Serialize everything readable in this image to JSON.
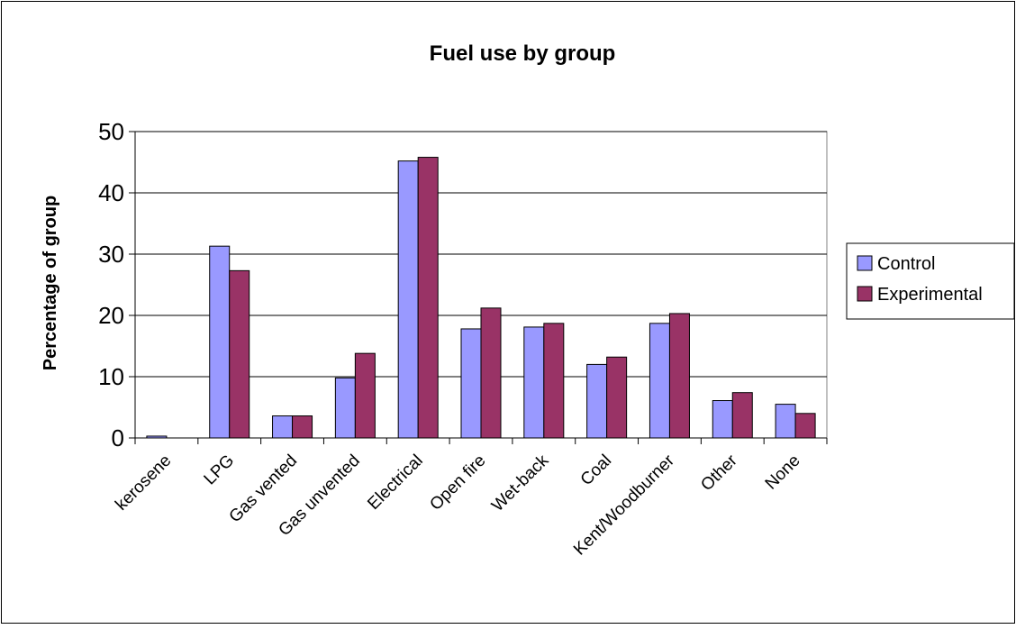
{
  "chart_data": {
    "type": "bar",
    "title": "Fuel use by group",
    "xlabel": "",
    "ylabel": "Percentage of group",
    "ylim": [
      0,
      50
    ],
    "yticks": [
      0,
      10,
      20,
      30,
      40,
      50
    ],
    "grid": true,
    "legend_position": "right",
    "categories": [
      "kerosene",
      "LPG",
      "Gas vented",
      "Gas unvented",
      "Electrical",
      "Open fire",
      "Wet-back",
      "Coal",
      "Kent/Woodburner",
      "Other",
      "None"
    ],
    "series": [
      {
        "name": "Control",
        "color": "#9999ff",
        "values": [
          0.3,
          31.3,
          3.6,
          9.8,
          45.2,
          17.8,
          18.1,
          12.0,
          18.7,
          6.1,
          5.5
        ]
      },
      {
        "name": "Experimental",
        "color": "#993366",
        "values": [
          0.0,
          27.3,
          3.6,
          13.8,
          45.8,
          21.2,
          18.7,
          13.2,
          20.3,
          7.4,
          4.0
        ]
      }
    ]
  }
}
